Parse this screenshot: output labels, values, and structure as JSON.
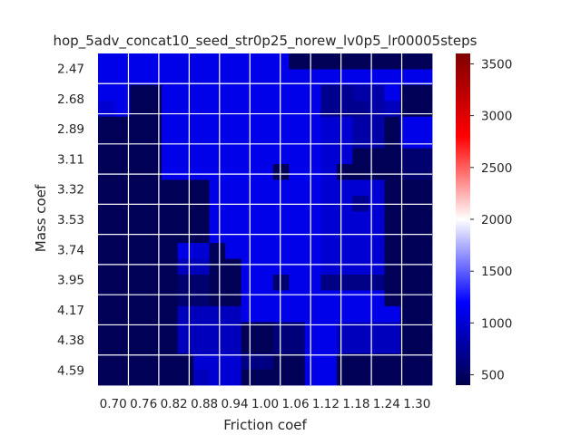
{
  "chart_data": {
    "type": "heatmap",
    "title": "hop_5adv_concat10_seed_str0p25_norew_lv0p5_lr00005steps",
    "xlabel": "Friction coef",
    "ylabel": "Mass coef",
    "x_ticks": [
      "0.70",
      "0.76",
      "0.82",
      "0.88",
      "0.94",
      "1.00",
      "1.06",
      "1.12",
      "1.18",
      "1.24",
      "1.30"
    ],
    "y_ticks": [
      "2.47",
      "2.68",
      "2.89",
      "3.11",
      "3.32",
      "3.53",
      "3.74",
      "3.95",
      "4.17",
      "4.38",
      "4.59"
    ],
    "colorbar": {
      "colormap": "seismic",
      "vmin": 400,
      "vmax": 3600,
      "ticks": [
        "500",
        "1000",
        "1500",
        "2000",
        "2500",
        "3000",
        "3500"
      ]
    },
    "grid": true,
    "n_cols": 21,
    "n_rows": 21,
    "values": [
      [
        1100,
        1100,
        1100,
        1100,
        1100,
        1100,
        1100,
        1100,
        1100,
        1100,
        1100,
        1100,
        450,
        450,
        450,
        450,
        450,
        450,
        450,
        450,
        450
      ],
      [
        1100,
        1100,
        1100,
        1100,
        1100,
        1100,
        1100,
        1100,
        1100,
        1100,
        1100,
        1100,
        1100,
        1100,
        1100,
        1100,
        1100,
        1100,
        1100,
        1100,
        1100
      ],
      [
        1100,
        1100,
        450,
        450,
        1100,
        1100,
        1100,
        1100,
        1100,
        1100,
        1100,
        1100,
        1100,
        1100,
        700,
        700,
        800,
        800,
        1100,
        450,
        450
      ],
      [
        1000,
        1100,
        450,
        450,
        1100,
        1100,
        1100,
        1100,
        1100,
        1100,
        1100,
        1100,
        1100,
        1100,
        700,
        700,
        700,
        800,
        900,
        450,
        450
      ],
      [
        450,
        450,
        450,
        450,
        1100,
        1100,
        1100,
        1100,
        1100,
        1100,
        1100,
        1100,
        1100,
        1100,
        1000,
        1000,
        800,
        800,
        450,
        1100,
        1100
      ],
      [
        450,
        450,
        450,
        450,
        1100,
        1100,
        1100,
        1100,
        1100,
        1100,
        1100,
        1100,
        1100,
        1100,
        1000,
        1000,
        800,
        800,
        450,
        1100,
        1100
      ],
      [
        450,
        450,
        450,
        450,
        1100,
        1100,
        1100,
        1100,
        1100,
        1100,
        1100,
        1100,
        1100,
        1100,
        1000,
        1000,
        450,
        450,
        450,
        550,
        550
      ],
      [
        450,
        450,
        450,
        450,
        1100,
        1100,
        1100,
        1100,
        1100,
        1100,
        1100,
        450,
        1100,
        1100,
        1000,
        450,
        450,
        450,
        450,
        550,
        550
      ],
      [
        450,
        450,
        450,
        450,
        450,
        450,
        450,
        1100,
        1100,
        1100,
        1100,
        1100,
        1100,
        1100,
        1000,
        1000,
        1000,
        1000,
        450,
        450,
        450
      ],
      [
        450,
        450,
        450,
        450,
        450,
        450,
        450,
        1100,
        1100,
        1100,
        1100,
        1100,
        1100,
        1100,
        1000,
        1000,
        700,
        1000,
        450,
        450,
        450
      ],
      [
        450,
        450,
        450,
        450,
        450,
        450,
        450,
        1100,
        1100,
        1100,
        1100,
        1100,
        1100,
        1100,
        1000,
        1000,
        1000,
        1000,
        450,
        450,
        450
      ],
      [
        450,
        450,
        450,
        450,
        450,
        450,
        450,
        1100,
        1100,
        1100,
        1100,
        1100,
        1100,
        1100,
        1000,
        1000,
        1000,
        1000,
        450,
        450,
        450
      ],
      [
        450,
        450,
        450,
        450,
        450,
        1100,
        1000,
        450,
        1100,
        1100,
        1100,
        1100,
        1100,
        1100,
        1000,
        1000,
        1000,
        1000,
        450,
        450,
        450
      ],
      [
        450,
        450,
        450,
        450,
        450,
        900,
        900,
        450,
        450,
        1100,
        1100,
        1100,
        1100,
        1100,
        1000,
        1000,
        1000,
        1000,
        450,
        450,
        450
      ],
      [
        450,
        450,
        450,
        450,
        450,
        550,
        550,
        450,
        450,
        1100,
        1100,
        550,
        1100,
        1100,
        650,
        650,
        650,
        650,
        450,
        450,
        450
      ],
      [
        450,
        450,
        450,
        450,
        450,
        550,
        550,
        450,
        450,
        1100,
        1100,
        1100,
        1100,
        1100,
        1100,
        1100,
        1100,
        1100,
        450,
        450,
        450
      ],
      [
        450,
        450,
        450,
        450,
        450,
        900,
        900,
        900,
        900,
        1100,
        1100,
        1100,
        1100,
        1100,
        1100,
        1100,
        1100,
        1100,
        1100,
        450,
        450
      ],
      [
        450,
        450,
        450,
        450,
        450,
        900,
        900,
        900,
        900,
        450,
        450,
        600,
        600,
        1100,
        1100,
        900,
        900,
        900,
        900,
        450,
        450
      ],
      [
        450,
        450,
        450,
        450,
        450,
        900,
        900,
        900,
        900,
        450,
        450,
        600,
        600,
        1100,
        1100,
        900,
        900,
        900,
        900,
        450,
        450
      ],
      [
        450,
        450,
        450,
        450,
        450,
        450,
        1000,
        1000,
        1000,
        650,
        650,
        450,
        450,
        1100,
        1100,
        450,
        450,
        450,
        450,
        450,
        450
      ],
      [
        450,
        450,
        450,
        450,
        450,
        450,
        900,
        1000,
        1000,
        450,
        450,
        450,
        450,
        1100,
        1100,
        450,
        450,
        450,
        450,
        450,
        450
      ]
    ]
  }
}
